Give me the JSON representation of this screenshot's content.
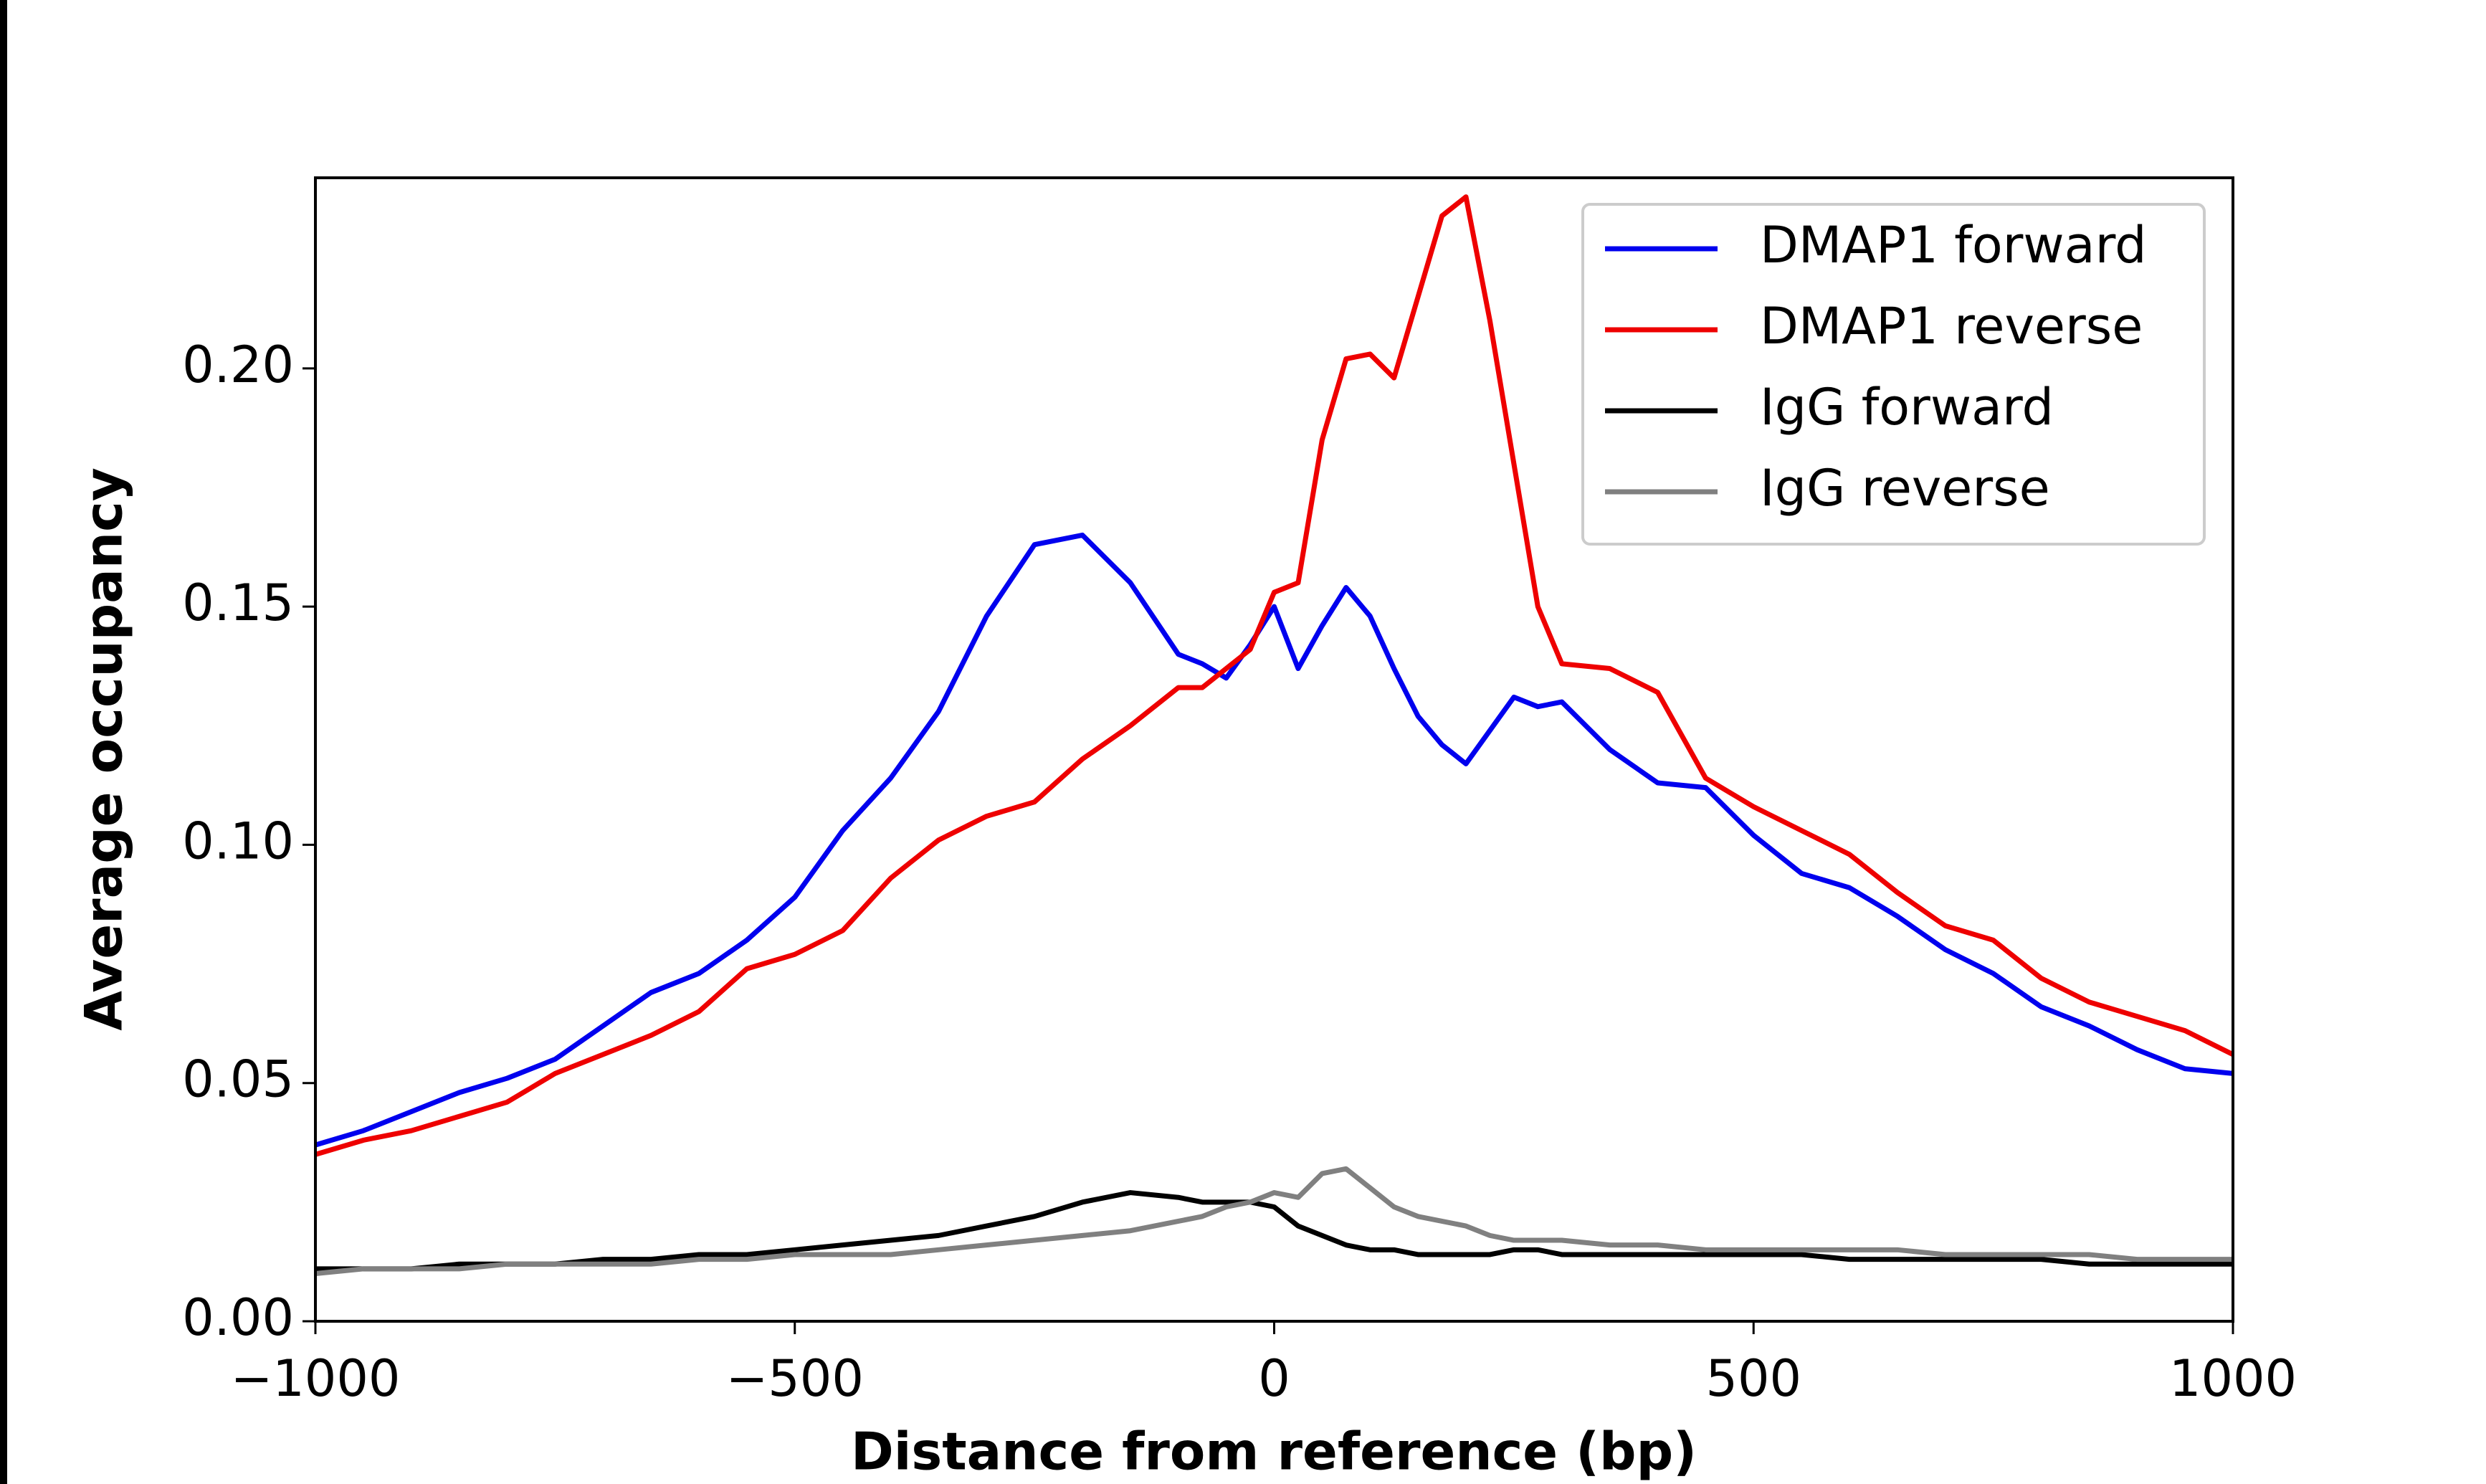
{
  "chart_data": {
    "type": "line",
    "xlabel": "Distance from reference (bp)",
    "ylabel": "Average occupancy",
    "x": [
      -1000,
      -950,
      -900,
      -850,
      -800,
      -750,
      -700,
      -650,
      -600,
      -550,
      -500,
      -450,
      -400,
      -350,
      -300,
      -250,
      -200,
      -150,
      -100,
      -75,
      -50,
      -25,
      0,
      25,
      50,
      75,
      100,
      125,
      150,
      175,
      200,
      225,
      250,
      275,
      300,
      350,
      400,
      450,
      500,
      550,
      600,
      650,
      700,
      750,
      800,
      850,
      900,
      950,
      1000
    ],
    "series": [
      {
        "name": "DMAP1 forward",
        "color": "#0000ee",
        "values": [
          0.037,
          0.04,
          0.044,
          0.048,
          0.051,
          0.055,
          0.062,
          0.069,
          0.073,
          0.08,
          0.089,
          0.103,
          0.114,
          0.128,
          0.148,
          0.163,
          0.165,
          0.155,
          0.14,
          0.138,
          0.135,
          0.142,
          0.15,
          0.137,
          0.146,
          0.154,
          0.148,
          0.137,
          0.127,
          0.121,
          0.117,
          0.124,
          0.131,
          0.129,
          0.13,
          0.12,
          0.113,
          0.112,
          0.102,
          0.094,
          0.091,
          0.085,
          0.078,
          0.073,
          0.066,
          0.062,
          0.057,
          0.053,
          0.052
        ]
      },
      {
        "name": "DMAP1 reverse",
        "color": "#ee0000",
        "values": [
          0.035,
          0.038,
          0.04,
          0.043,
          0.046,
          0.052,
          0.056,
          0.06,
          0.065,
          0.074,
          0.077,
          0.082,
          0.093,
          0.101,
          0.106,
          0.109,
          0.118,
          0.125,
          0.133,
          0.133,
          0.137,
          0.141,
          0.153,
          0.155,
          0.185,
          0.202,
          0.203,
          0.198,
          0.215,
          0.232,
          0.236,
          0.21,
          0.18,
          0.15,
          0.138,
          0.137,
          0.132,
          0.114,
          0.108,
          0.103,
          0.098,
          0.09,
          0.083,
          0.08,
          0.072,
          0.067,
          0.064,
          0.061,
          0.056
        ]
      },
      {
        "name": "IgG forward",
        "color": "#000000",
        "values": [
          0.011,
          0.011,
          0.011,
          0.012,
          0.012,
          0.012,
          0.013,
          0.013,
          0.014,
          0.014,
          0.015,
          0.016,
          0.017,
          0.018,
          0.02,
          0.022,
          0.025,
          0.027,
          0.026,
          0.025,
          0.025,
          0.025,
          0.024,
          0.02,
          0.018,
          0.016,
          0.015,
          0.015,
          0.014,
          0.014,
          0.014,
          0.014,
          0.015,
          0.015,
          0.014,
          0.014,
          0.014,
          0.014,
          0.014,
          0.014,
          0.013,
          0.013,
          0.013,
          0.013,
          0.013,
          0.012,
          0.012,
          0.012,
          0.012
        ]
      },
      {
        "name": "IgG reverse",
        "color": "#808080",
        "values": [
          0.01,
          0.011,
          0.011,
          0.011,
          0.012,
          0.012,
          0.012,
          0.012,
          0.013,
          0.013,
          0.014,
          0.014,
          0.014,
          0.015,
          0.016,
          0.017,
          0.018,
          0.019,
          0.021,
          0.022,
          0.024,
          0.025,
          0.027,
          0.026,
          0.031,
          0.032,
          0.028,
          0.024,
          0.022,
          0.021,
          0.02,
          0.018,
          0.017,
          0.017,
          0.017,
          0.016,
          0.016,
          0.015,
          0.015,
          0.015,
          0.015,
          0.015,
          0.014,
          0.014,
          0.014,
          0.014,
          0.013,
          0.013,
          0.013
        ]
      }
    ],
    "xlim": [
      -1000,
      1000
    ],
    "xticks": [
      {
        "value": -1000,
        "label": "−1000"
      },
      {
        "value": -500,
        "label": "−500"
      },
      0,
      500,
      1000
    ],
    "ylim": [
      0,
      0.24
    ],
    "yticks": [
      {
        "value": 0,
        "label": "0.00"
      },
      {
        "value": 0.05,
        "label": "0.05"
      },
      {
        "value": 0.1,
        "label": "0.10"
      },
      {
        "value": 0.15,
        "label": "0.15"
      },
      {
        "value": 0.2,
        "label": "0.20"
      }
    ],
    "legend": "upper right"
  }
}
